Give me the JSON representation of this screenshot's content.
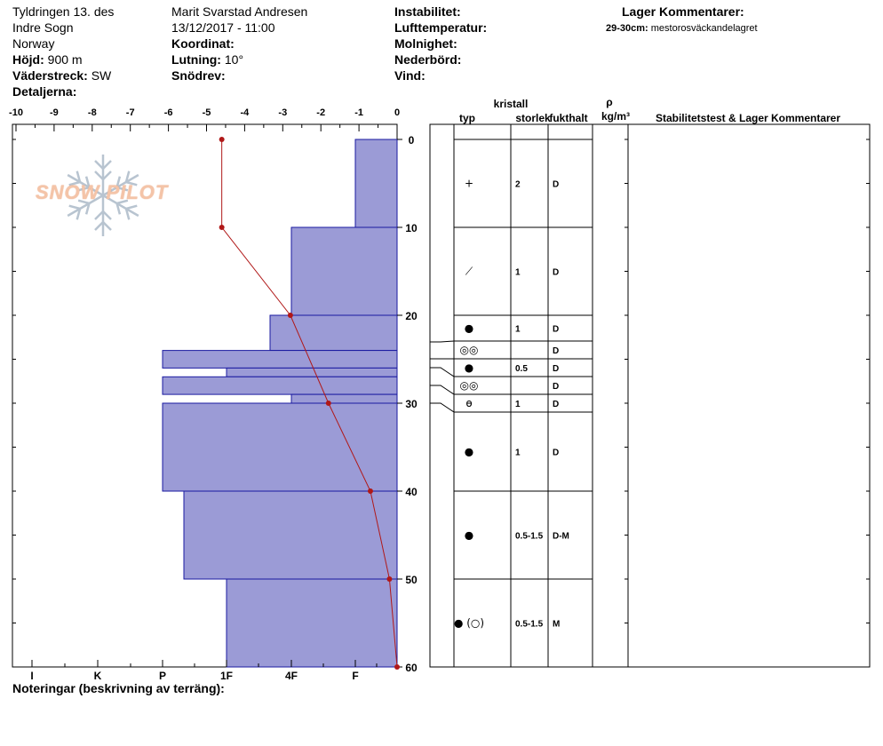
{
  "header": {
    "col1": {
      "location": "Tyldringen 13. des",
      "region": "Indre Sogn",
      "country": "Norway",
      "elevation_label": "Höjd:",
      "elevation": "900 m",
      "aspect_label": "Väderstreck:",
      "aspect": "SW",
      "details_label": "Detaljerna:"
    },
    "col2": {
      "observer": "Marit Svarstad Andresen",
      "datetime": "13/12/2017 - 11:00",
      "coord_label": "Koordinat:",
      "slope_label": "Lutning:",
      "slope": "10°",
      "drift_label": "Snödrev:"
    },
    "col3": {
      "instability": "Instabilitet:",
      "air_temp": "Lufttemperatur:",
      "clouds": "Molnighet:",
      "precip": "Nederbörd:",
      "wind": "Vind:"
    },
    "col4": {
      "title": "Lager Kommentarer:",
      "comment_depth": "29-30cm:",
      "comment_text": "mestorosväckandelagret"
    }
  },
  "logo": {
    "text": "SNOW PILOT"
  },
  "footer": {
    "notes_label": "Noteringar (beskrivning av terräng):"
  },
  "table_headers": {
    "crystal": "kristall",
    "type": "typ",
    "size": "storlek",
    "moisture": "fukthalt",
    "rho": "ρ",
    "density_unit": "kg/m³",
    "stability": "Stabilitetstest & Lager Kommentarer"
  },
  "chart_data": {
    "type": "bar",
    "temp_axis": {
      "ticks": [
        "-10",
        "-9",
        "-8",
        "-7",
        "-6",
        "-5",
        "-4",
        "-3",
        "-2",
        "-1",
        "0"
      ],
      "range": [
        -10,
        0
      ]
    },
    "hardness_axis": {
      "labels": [
        "I",
        "K",
        "P",
        "1F",
        "4F",
        "F"
      ]
    },
    "depth_axis": {
      "ticks": [
        "0",
        "10",
        "20",
        "30",
        "40",
        "50",
        "60"
      ],
      "range": [
        0,
        60
      ]
    },
    "hardness_layers": [
      {
        "top": 0,
        "bottom": 10,
        "hardness": "F"
      },
      {
        "top": 10,
        "bottom": 20,
        "hardness": "4F"
      },
      {
        "top": 20,
        "bottom": 24,
        "hardness": "4F-1F"
      },
      {
        "top": 24,
        "bottom": 26,
        "hardness": "P"
      },
      {
        "top": 26,
        "bottom": 27,
        "hardness": "1F"
      },
      {
        "top": 27,
        "bottom": 29,
        "hardness": "P"
      },
      {
        "top": 29,
        "bottom": 30,
        "hardness": "4F"
      },
      {
        "top": 30,
        "bottom": 40,
        "hardness": "P"
      },
      {
        "top": 40,
        "bottom": 50,
        "hardness": "P-1F"
      },
      {
        "top": 50,
        "bottom": 60,
        "hardness": "1F"
      }
    ],
    "temperature_profile": [
      {
        "depth": 0,
        "temp": -4.6
      },
      {
        "depth": 10,
        "temp": -4.6
      },
      {
        "depth": 20,
        "temp": -2.8
      },
      {
        "depth": 30,
        "temp": -1.8
      },
      {
        "depth": 40,
        "temp": -0.7
      },
      {
        "depth": 50,
        "temp": -0.2
      },
      {
        "depth": 60,
        "temp": 0
      }
    ],
    "layers": [
      {
        "top": 0,
        "bottom": 10,
        "type": "+",
        "size": "2",
        "moisture": "D"
      },
      {
        "top": 10,
        "bottom": 20,
        "type": "⟋",
        "size": "1",
        "moisture": "D"
      },
      {
        "top": 20,
        "bottom": 23,
        "type": "●",
        "size": "1",
        "moisture": "D"
      },
      {
        "top": 23,
        "bottom": 25,
        "type": "◎◎",
        "size": "",
        "moisture": "D"
      },
      {
        "top": 25,
        "bottom": 27,
        "type": "●",
        "size": "0.5",
        "moisture": "D"
      },
      {
        "top": 27,
        "bottom": 29,
        "type": "◎◎",
        "size": "",
        "moisture": "D"
      },
      {
        "top": 29,
        "bottom": 31,
        "type": "ɵ",
        "size": "1",
        "moisture": "D"
      },
      {
        "top": 31,
        "bottom": 40,
        "type": "●",
        "size": "1",
        "moisture": "D"
      },
      {
        "top": 40,
        "bottom": 50,
        "type": "●",
        "size": "0.5-1.5",
        "moisture": "D-M"
      },
      {
        "top": 50,
        "bottom": 60,
        "type": "● (○)",
        "size": "0.5-1.5",
        "moisture": "M"
      }
    ]
  },
  "colors": {
    "bar_fill": "#9b9bd6",
    "bar_stroke": "#1a1aa0",
    "temp_line": "#b01818",
    "grid": "#000000"
  }
}
